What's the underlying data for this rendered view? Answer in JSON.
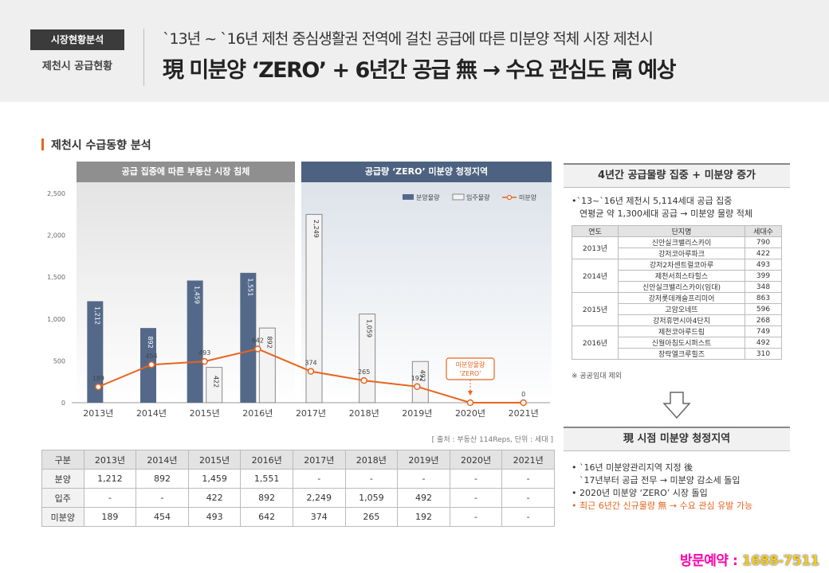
{
  "header": {
    "tag": "시장현황분석",
    "subtag": "제천시 공급현황",
    "subtitle": "`13년 ~ `16년 제천 중심생활권 전역에 걸친 공급에 따른 미분양 적체 시장 제천시",
    "title": "現 미분양 ‘ZERO’ + 6년간 공급 無 → 수요 관심도 高 예상"
  },
  "section_title": "제천시 수급동향 분석",
  "bands": {
    "left": "공급 집중에 따른 부동산 시장 침체",
    "right": "공급량 ‘ZERO’ 미분양 청정지역"
  },
  "colors": {
    "presale": "#54698a",
    "move_in": "#f3f3f3",
    "unsold": "#e8641e",
    "accent": "#e8641e"
  },
  "chart_data": {
    "type": "bar",
    "categories": [
      "2013년",
      "2014년",
      "2015년",
      "2016년",
      "2017년",
      "2018년",
      "2019년",
      "2020년",
      "2021년"
    ],
    "series": [
      {
        "name": "분양물량",
        "type": "bar",
        "values": [
          1212,
          892,
          1459,
          1551,
          null,
          null,
          null,
          null,
          null
        ]
      },
      {
        "name": "입주물량",
        "type": "bar",
        "values": [
          null,
          null,
          422,
          892,
          2249,
          1059,
          492,
          null,
          null
        ]
      },
      {
        "name": "미분양",
        "type": "line",
        "values": [
          189,
          454,
          493,
          642,
          374,
          265,
          192,
          0,
          0
        ]
      }
    ],
    "bar_labels": {
      "presale": [
        "1,212",
        "892",
        "1,459",
        "1,551",
        "",
        "",
        "",
        "",
        ""
      ],
      "move_in": [
        "",
        "",
        "422",
        "892",
        "2,249",
        "1,059",
        "492",
        "",
        ""
      ]
    },
    "line_labels": [
      "189",
      "454",
      "493",
      "642",
      "374",
      "265",
      "192",
      "",
      "0"
    ],
    "y_ticks": [
      "0",
      "500",
      "1,000",
      "1,500",
      "2,000",
      "2,500"
    ],
    "ylim": [
      0,
      2500
    ],
    "callout": [
      "미분양물량",
      "‘ZERO’"
    ],
    "legend": "top-right",
    "source": "[ 출처 : 부동산 114Reps, 단위 : 세대 ]"
  },
  "table": {
    "headers": [
      "구분",
      "2013년",
      "2014년",
      "2015년",
      "2016년",
      "2017년",
      "2018년",
      "2019년",
      "2020년",
      "2021년"
    ],
    "rows": [
      [
        "분양",
        "1,212",
        "892",
        "1,459",
        "1,551",
        "-",
        "-",
        "-",
        "-",
        "-"
      ],
      [
        "입주",
        "-",
        "-",
        "422",
        "892",
        "2,249",
        "1,059",
        "492",
        "-",
        "-"
      ],
      [
        "미분양",
        "189",
        "454",
        "493",
        "642",
        "374",
        "265",
        "192",
        "-",
        "-"
      ]
    ]
  },
  "right_panel": {
    "title1": "4년간 공급물량 집중 + 미분양 증가",
    "bullet1_line1": "•`13~`16년 제천시 5,114세대 공급 집중",
    "bullet1_line2": "연평균 약 1,300세대 공급 → 미분양 물량 적체",
    "table_headers": [
      "연도",
      "단지명",
      "세대수"
    ],
    "groups": [
      {
        "year": "2013년",
        "items": [
          [
            "신안실크밸리스카이",
            "790"
          ],
          [
            "강저코아루파크",
            "422"
          ]
        ]
      },
      {
        "year": "2014년",
        "items": [
          [
            "강저2차센트럴코아루",
            "493"
          ],
          [
            "제천서희스타힐스",
            "399"
          ],
          [
            "신안실크밸리스카이(임대)",
            "348"
          ]
        ]
      },
      {
        "year": "2015년",
        "items": [
          [
            "강저롯데캐슬프리미어",
            "863"
          ],
          [
            "고암오네뜨",
            "596"
          ],
          [
            "강저휴먼시아4단지",
            "268"
          ]
        ]
      },
      {
        "year": "2016년",
        "items": [
          [
            "제천코아루드림",
            "749"
          ],
          [
            "신월아침도시퍼스트",
            "492"
          ],
          [
            "장락엘크루힐즈",
            "310"
          ]
        ]
      }
    ],
    "note": "※ 공공임대 제외",
    "title2": "現 시점 미분양 청정지역",
    "b2_l1": "• `16년 미분양관리지역 지정 後",
    "b2_l2": "`17년부터 공급 전무 → 미분양 감소세 돌입",
    "b2_l3": "• 2020년 미분양 ‘ZERO’ 시장 돌입",
    "b2_l4": "• 최근 6년간 신규물량 無 → 수요 관심 유발 가능"
  },
  "footer": {
    "label": "방문예약 : ",
    "phone": "1688-7511"
  }
}
